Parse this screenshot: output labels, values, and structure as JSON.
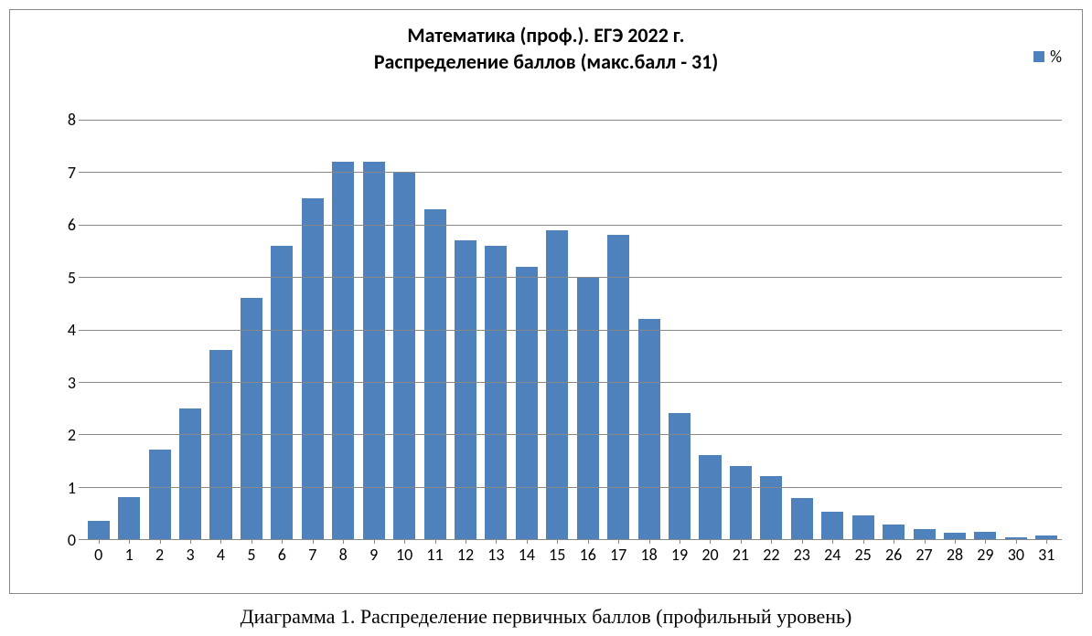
{
  "chart": {
    "type": "bar",
    "title_line1": "Математика (проф.). ЕГЭ 2022 г.",
    "title_line2": "Распределение баллов (макс.балл - 31)",
    "title_fontsize": 22,
    "title_font_weight": "bold",
    "legend_label": "%",
    "legend_fontsize": 18,
    "categories": [
      "0",
      "1",
      "2",
      "3",
      "4",
      "5",
      "6",
      "7",
      "8",
      "9",
      "10",
      "11",
      "12",
      "13",
      "14",
      "15",
      "16",
      "17",
      "18",
      "19",
      "20",
      "21",
      "22",
      "23",
      "24",
      "25",
      "26",
      "27",
      "28",
      "29",
      "30",
      "31"
    ],
    "values": [
      0.35,
      0.8,
      1.7,
      2.5,
      3.6,
      4.6,
      5.6,
      6.5,
      7.2,
      7.2,
      7.0,
      6.3,
      5.7,
      5.6,
      5.2,
      5.9,
      5.0,
      5.8,
      4.2,
      2.4,
      1.6,
      1.4,
      1.2,
      0.78,
      0.52,
      0.45,
      0.28,
      0.2,
      0.13,
      0.14,
      0.04,
      0.07
    ],
    "bar_color": "#4f81bd",
    "ylim": [
      0,
      8
    ],
    "ytick_step": 1,
    "y_ticks": [
      0,
      1,
      2,
      3,
      4,
      5,
      6,
      7,
      8
    ],
    "background_color": "#ffffff",
    "grid_color": "#888888",
    "border_color": "#888888",
    "axis_label_fontsize": 18,
    "bar_width": 0.72
  },
  "caption": "Диаграмма 1. Распределение первичных баллов (профильный уровень)",
  "caption_fontsize": 22
}
